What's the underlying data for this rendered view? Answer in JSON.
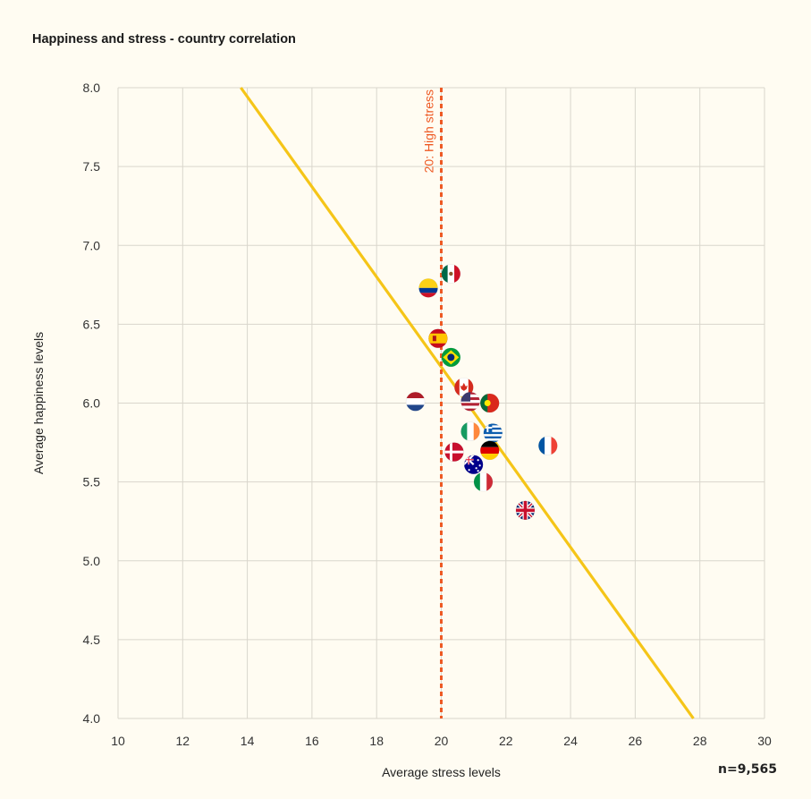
{
  "title": "Happiness and stress - country correlation",
  "sample": "n=9,565",
  "chart_data": {
    "type": "scatter",
    "title": "Happiness and stress - country correlation",
    "xlabel": "Average stress levels",
    "ylabel": "Average happiness levels",
    "xlim": [
      10,
      30
    ],
    "ylim": [
      4.0,
      8.0
    ],
    "xticks": [
      "10",
      "12",
      "14",
      "16",
      "18",
      "20",
      "22",
      "24",
      "26",
      "28",
      "30"
    ],
    "yticks": [
      "4.0",
      "4.5",
      "5.0",
      "5.5",
      "6.0",
      "6.5",
      "7.0",
      "7.5",
      "8.0"
    ],
    "grid": true,
    "reference_line": {
      "x": 20,
      "label": "20: High stress",
      "color": "#ee5a24"
    },
    "trend_line": {
      "x": [
        13.8,
        27.8
      ],
      "y": [
        8.0,
        4.0
      ],
      "color": "#f5c518"
    },
    "points": [
      {
        "country": "Mexico",
        "flag": "mexico-flag",
        "x": 20.3,
        "y": 6.82
      },
      {
        "country": "Colombia",
        "flag": "colombia-flag",
        "x": 19.6,
        "y": 6.73
      },
      {
        "country": "Spain",
        "flag": "spain-flag",
        "x": 19.9,
        "y": 6.41
      },
      {
        "country": "Brazil",
        "flag": "brazil-flag",
        "x": 20.3,
        "y": 6.29
      },
      {
        "country": "Canada",
        "flag": "canada-flag",
        "x": 20.7,
        "y": 6.1
      },
      {
        "country": "Netherlands",
        "flag": "netherlands-flag",
        "x": 19.2,
        "y": 6.01
      },
      {
        "country": "United States",
        "flag": "usa-flag",
        "x": 20.9,
        "y": 6.01
      },
      {
        "country": "Portugal",
        "flag": "portugal-flag",
        "x": 21.5,
        "y": 6.0
      },
      {
        "country": "Ireland",
        "flag": "ireland-flag",
        "x": 20.9,
        "y": 5.82
      },
      {
        "country": "Greece",
        "flag": "greece-flag",
        "x": 21.6,
        "y": 5.81
      },
      {
        "country": "France",
        "flag": "france-flag",
        "x": 23.3,
        "y": 5.73
      },
      {
        "country": "Germany",
        "flag": "germany-flag",
        "x": 21.5,
        "y": 5.7
      },
      {
        "country": "Denmark",
        "flag": "denmark-flag",
        "x": 20.4,
        "y": 5.69
      },
      {
        "country": "Australia",
        "flag": "australia-flag",
        "x": 21.0,
        "y": 5.61
      },
      {
        "country": "Italy",
        "flag": "italy-flag",
        "x": 21.3,
        "y": 5.5
      },
      {
        "country": "United Kingdom",
        "flag": "uk-flag",
        "x": 22.6,
        "y": 5.32
      }
    ]
  }
}
